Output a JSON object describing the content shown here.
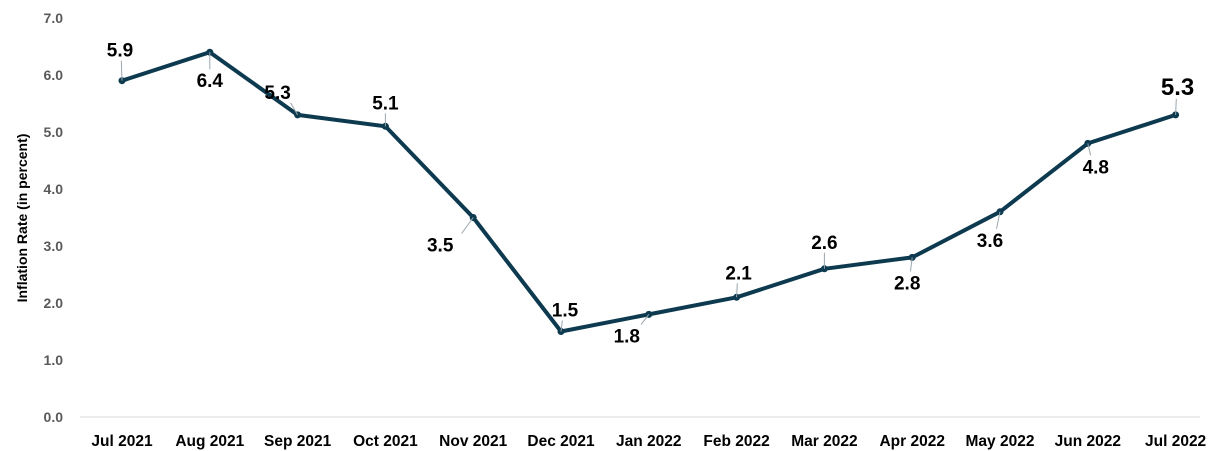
{
  "chart_data": {
    "type": "line",
    "title": "",
    "xlabel": "",
    "ylabel": "Inflation Rate (in percent)",
    "categories": [
      "Jul 2021",
      "Aug 2021",
      "Sep 2021",
      "Oct 2021",
      "Nov 2021",
      "Dec 2021",
      "Jan 2022",
      "Feb 2022",
      "Mar 2022",
      "Apr 2022",
      "May 2022",
      "Jun 2022",
      "Jul 2022"
    ],
    "values": [
      5.9,
      6.4,
      5.3,
      5.1,
      3.5,
      1.5,
      1.8,
      2.1,
      2.6,
      2.8,
      3.6,
      4.8,
      5.3
    ],
    "data_labels": [
      "5.9",
      "6.4",
      "5.3",
      "5.1",
      "3.5",
      "1.5",
      "1.8",
      "2.1",
      "2.6",
      "2.8",
      "3.6",
      "4.8",
      "5.3"
    ],
    "ylim": [
      0,
      7
    ],
    "yticks": [
      "0.0",
      "1.0",
      "2.0",
      "3.0",
      "4.0",
      "5.0",
      "6.0",
      "7.0"
    ],
    "grid": false,
    "legend": "none",
    "colors": {
      "line": "#0d3a4f",
      "highlight_label": "#e30613",
      "axis": "#d9d9d9"
    },
    "highlight_index": 12
  }
}
